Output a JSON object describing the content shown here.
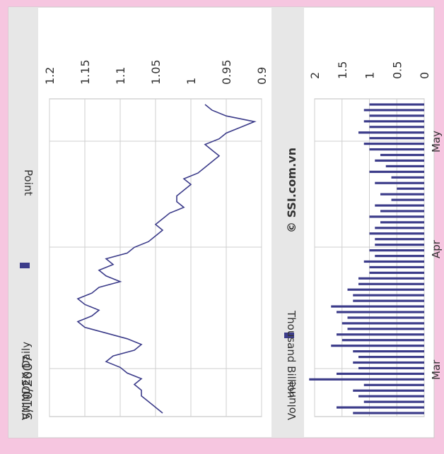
{
  "date": "5/10/2007",
  "watermark": "© SSI.com.vn",
  "colors": {
    "background": "#f6c6e0",
    "panel": "#ffffff",
    "frame": "#c9c9c9",
    "header_band": "#e7e7e7",
    "grid": "#cfcfcf",
    "series": "#3c3c8a"
  },
  "chart_data": [
    {
      "type": "line",
      "legend_label": "VNINDEX Daily",
      "ylabel": "Point",
      "y_ticks": [
        "1.2",
        "1.15",
        "1.1",
        "1.05",
        "1",
        "0.95",
        "0.9"
      ],
      "ylim": [
        0.9,
        1.2
      ],
      "x_tick_labels": [
        "Mar",
        "Apr",
        "May"
      ],
      "grid": true,
      "x": [
        0,
        1,
        2,
        3,
        4,
        5,
        6,
        7,
        8,
        9,
        10,
        11,
        12,
        13,
        14,
        15,
        16,
        17,
        18,
        19,
        20,
        21,
        22,
        23,
        24,
        25,
        26,
        27,
        28,
        29,
        30,
        31,
        32,
        33,
        34,
        35,
        36,
        37,
        38,
        39,
        40,
        41,
        42,
        43,
        44,
        45,
        46,
        47,
        48,
        49,
        50,
        51,
        52,
        53,
        54
      ],
      "values": [
        1.04,
        1.05,
        1.06,
        1.07,
        1.07,
        1.08,
        1.07,
        1.09,
        1.1,
        1.12,
        1.11,
        1.08,
        1.07,
        1.09,
        1.12,
        1.15,
        1.16,
        1.14,
        1.13,
        1.15,
        1.16,
        1.14,
        1.13,
        1.1,
        1.12,
        1.13,
        1.11,
        1.12,
        1.09,
        1.08,
        1.06,
        1.05,
        1.04,
        1.05,
        1.04,
        1.03,
        1.01,
        1.02,
        1.02,
        1.01,
        1.0,
        1.01,
        0.99,
        0.98,
        0.97,
        0.96,
        0.97,
        0.98,
        0.96,
        0.95,
        0.93,
        0.91,
        0.95,
        0.97,
        0.98
      ]
    },
    {
      "type": "bar",
      "legend_label": "Volume",
      "ylabel": "Thousand Billion",
      "y_ticks": [
        "2",
        "1.5",
        "1",
        "0.5",
        "0"
      ],
      "ylim": [
        0,
        2
      ],
      "x_tick_labels": [
        "Mar",
        "Apr",
        "May"
      ],
      "grid": true,
      "values": [
        1.3,
        1.6,
        1.1,
        1.2,
        1.3,
        1.1,
        2.1,
        1.6,
        1.2,
        1.3,
        1.2,
        1.3,
        1.7,
        1.5,
        1.6,
        1.4,
        1.5,
        1.4,
        1.6,
        1.7,
        1.3,
        1.3,
        1.4,
        1.2,
        1.2,
        1.0,
        1.0,
        1.1,
        0.9,
        1.0,
        0.9,
        0.9,
        1.0,
        0.9,
        0.8,
        1.0,
        0.8,
        0.9,
        0.6,
        0.8,
        0.5,
        0.9,
        0.6,
        1.0,
        0.7,
        0.9,
        0.8,
        1.0,
        1.1,
        1.0,
        1.2,
        1.0,
        1.1,
        1.0,
        1.1,
        1.0
      ]
    }
  ]
}
